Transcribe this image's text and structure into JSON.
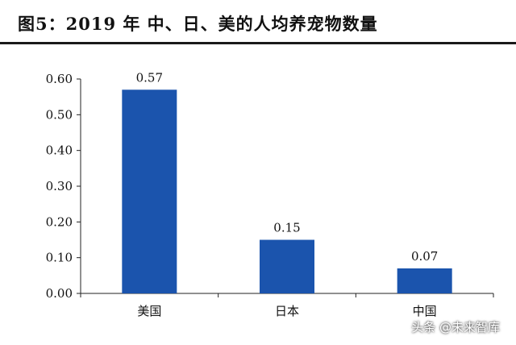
{
  "title": "图5：2019 年 中、日、美的人均养宠物数量",
  "watermark": "头条 @未来智库",
  "colors": {
    "bar": "#1b54ad",
    "axis": "#222222",
    "text": "#111111"
  },
  "chart_data": {
    "type": "bar",
    "categories": [
      "美国",
      "日本",
      "中国"
    ],
    "values": [
      0.57,
      0.15,
      0.07
    ],
    "data_labels": [
      "0.57",
      "0.15",
      "0.07"
    ],
    "title": "",
    "xlabel": "",
    "ylabel": "",
    "ylim": [
      0,
      0.6
    ],
    "yticks": [
      "0.00",
      "0.10",
      "0.20",
      "0.30",
      "0.40",
      "0.50",
      "0.60"
    ],
    "grid": false,
    "legend": "none"
  }
}
